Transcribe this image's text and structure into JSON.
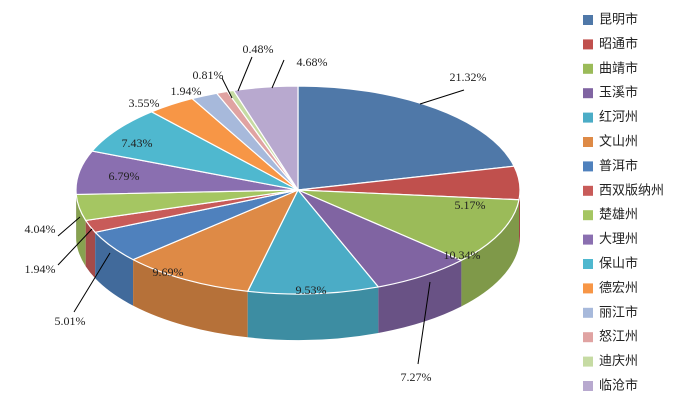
{
  "chart_data": {
    "type": "pie",
    "variant": "3d",
    "legend": "right",
    "slices": [
      {
        "name": "昆明市",
        "value": 21.32,
        "label": "21.32%",
        "color": "#4F78A8"
      },
      {
        "name": "昭通市",
        "value": 5.17,
        "label": "5.17%",
        "color": "#C0504D"
      },
      {
        "name": "曲靖市",
        "value": 10.34,
        "label": "10.34%",
        "color": "#9BBB59"
      },
      {
        "name": "玉溪市",
        "value": 7.27,
        "label": "7.27%",
        "color": "#8064A2"
      },
      {
        "name": "红河州",
        "value": 9.53,
        "label": "9.53%",
        "color": "#4BACC6"
      },
      {
        "name": "文山州",
        "value": 9.69,
        "label": "9.69%",
        "color": "#DE8A46"
      },
      {
        "name": "普洱市",
        "value": 5.01,
        "label": "5.01%",
        "color": "#4F81BD"
      },
      {
        "name": "西双版纳州",
        "value": 1.94,
        "label": "1.94%",
        "color": "#C85B59"
      },
      {
        "name": "楚雄州",
        "value": 4.04,
        "label": "4.04%",
        "color": "#A5C662"
      },
      {
        "name": "大理州",
        "value": 6.79,
        "label": "6.79%",
        "color": "#8A6FB0"
      },
      {
        "name": "保山市",
        "value": 7.43,
        "label": "7.43%",
        "color": "#4FB8CF"
      },
      {
        "name": "德宏州",
        "value": 3.55,
        "label": "3.55%",
        "color": "#F79646"
      },
      {
        "name": "丽江市",
        "value": 1.94,
        "label": "1.94%",
        "color": "#A7B9DB"
      },
      {
        "name": "怒江州",
        "value": 0.81,
        "label": "0.81%",
        "color": "#E0A3A2"
      },
      {
        "name": "迪庆州",
        "value": 0.48,
        "label": "0.48%",
        "color": "#C6DBA3"
      },
      {
        "name": "临沧市",
        "value": 4.68,
        "label": "4.68%",
        "color": "#B8A9CF"
      }
    ]
  }
}
